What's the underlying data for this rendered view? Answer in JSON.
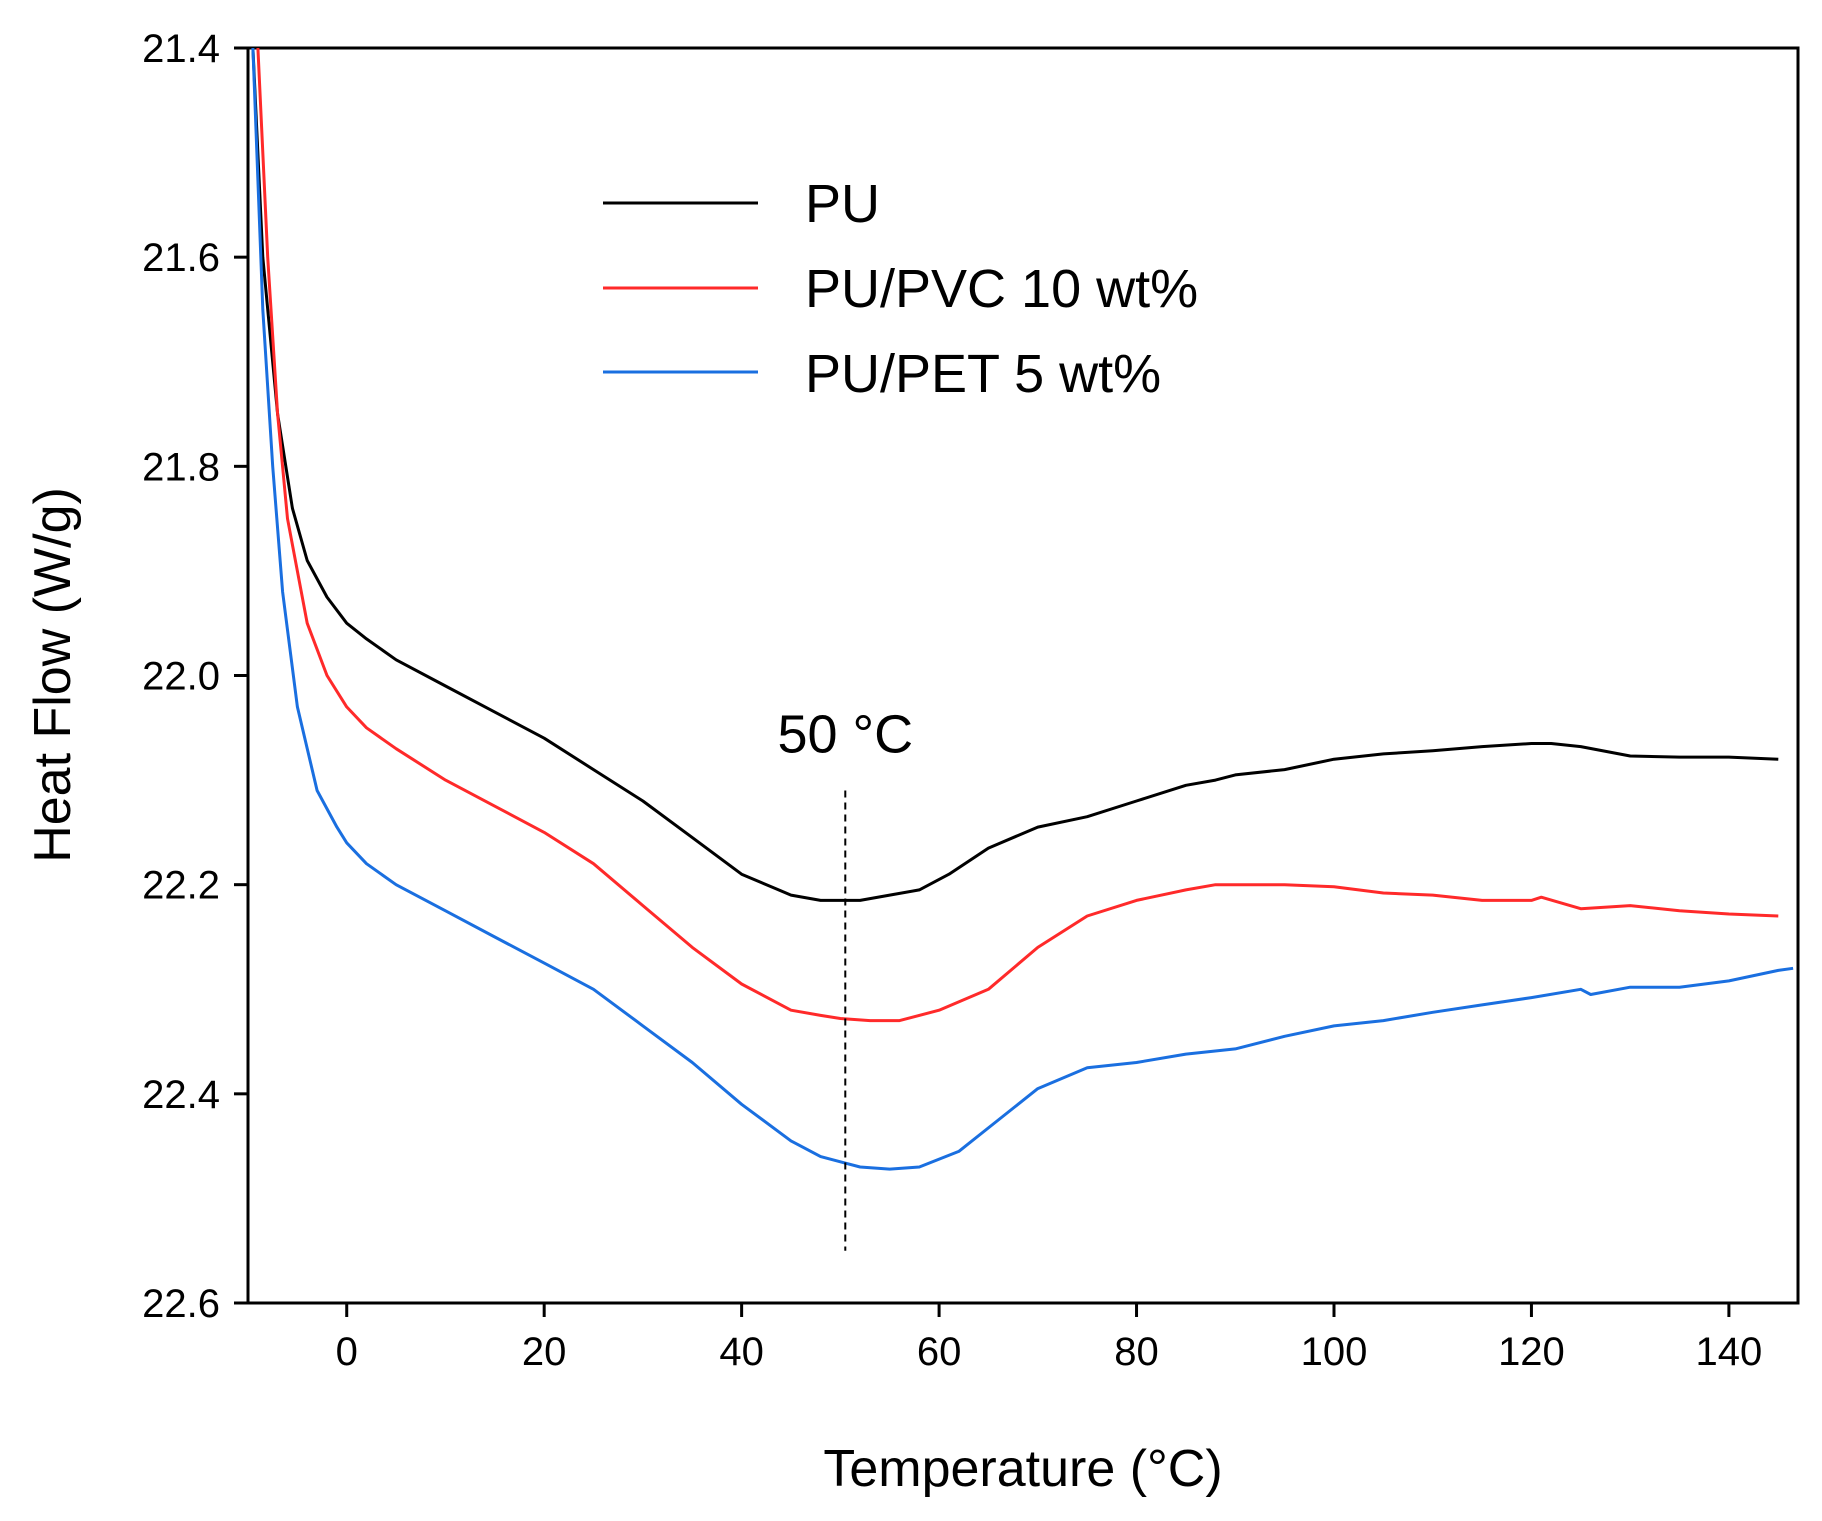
{
  "chart_data": {
    "type": "line",
    "title": "",
    "xlabel": "Temperature (°C)",
    "ylabel": "Heat Flow (W/g)",
    "xlim": [
      -10,
      147
    ],
    "ylim": [
      21.4,
      22.6
    ],
    "y_inverted": true,
    "x_ticks": [
      0,
      20,
      40,
      60,
      80,
      100,
      120,
      140
    ],
    "x_tick_labels": [
      "0",
      "20",
      "40",
      "60",
      "80",
      "100",
      "120",
      "140"
    ],
    "y_ticks": [
      21.4,
      21.6,
      21.8,
      22.0,
      22.2,
      22.4,
      22.6
    ],
    "y_tick_labels": [
      "21.4",
      "21.6",
      "21.8",
      "22.0",
      "22.2",
      "22.4",
      "22.6"
    ],
    "grid": false,
    "legend_position": "top-center",
    "series": [
      {
        "name": "PU",
        "color": "#000000",
        "x": [
          -9.5,
          -8.5,
          -7,
          -5.5,
          -4,
          -2,
          0,
          2,
          5,
          10,
          15,
          20,
          25,
          30,
          35,
          40,
          45,
          48,
          50,
          52,
          55,
          58,
          61,
          65,
          70,
          75,
          80,
          85,
          88,
          90,
          95,
          100,
          105,
          110,
          115,
          120,
          122,
          125,
          130,
          135,
          140,
          145
        ],
        "y": [
          21.4,
          21.6,
          21.75,
          21.84,
          21.89,
          21.925,
          21.95,
          21.965,
          21.985,
          22.01,
          22.035,
          22.06,
          22.09,
          22.12,
          22.155,
          22.19,
          22.21,
          22.215,
          22.215,
          22.215,
          22.21,
          22.205,
          22.19,
          22.165,
          22.145,
          22.135,
          22.12,
          22.105,
          22.1,
          22.095,
          22.09,
          22.08,
          22.075,
          22.072,
          22.068,
          22.065,
          22.065,
          22.068,
          22.077,
          22.078,
          22.078,
          22.08
        ]
      },
      {
        "name": "PU/PVC 10 wt%",
        "color": "#ff2a2a",
        "x": [
          -9,
          -8,
          -7,
          -6,
          -4,
          -2,
          0,
          2,
          5,
          10,
          15,
          20,
          25,
          30,
          35,
          40,
          45,
          48,
          50,
          53,
          56,
          60,
          65,
          70,
          75,
          80,
          85,
          88,
          90,
          95,
          100,
          105,
          110,
          115,
          120,
          121,
          125,
          130,
          135,
          140,
          145
        ],
        "y": [
          21.4,
          21.6,
          21.75,
          21.85,
          21.95,
          22.0,
          22.03,
          22.05,
          22.07,
          22.1,
          22.125,
          22.15,
          22.18,
          22.22,
          22.26,
          22.295,
          22.32,
          22.325,
          22.328,
          22.33,
          22.33,
          22.32,
          22.3,
          22.26,
          22.23,
          22.215,
          22.205,
          22.2,
          22.2,
          22.2,
          22.202,
          22.208,
          22.21,
          22.215,
          22.215,
          22.212,
          22.223,
          22.22,
          22.225,
          22.228,
          22.23
        ]
      },
      {
        "name": "PU/PET 5 wt%",
        "color": "#1a6fe0",
        "x": [
          -9.5,
          -8.5,
          -7.5,
          -6.5,
          -5,
          -3,
          -1,
          0,
          2,
          5,
          10,
          15,
          20,
          25,
          30,
          35,
          40,
          45,
          48,
          50,
          52,
          55,
          58,
          62,
          66,
          70,
          75,
          80,
          85,
          90,
          95,
          100,
          105,
          110,
          115,
          120,
          125,
          126,
          130,
          135,
          140,
          145,
          146.5
        ],
        "y": [
          21.4,
          21.65,
          21.8,
          21.92,
          22.03,
          22.11,
          22.145,
          22.16,
          22.18,
          22.2,
          22.225,
          22.25,
          22.275,
          22.3,
          22.335,
          22.37,
          22.41,
          22.445,
          22.46,
          22.465,
          22.47,
          22.472,
          22.47,
          22.455,
          22.425,
          22.395,
          22.375,
          22.37,
          22.362,
          22.357,
          22.345,
          22.335,
          22.33,
          22.322,
          22.315,
          22.308,
          22.3,
          22.305,
          22.298,
          22.298,
          22.292,
          22.282,
          22.28
        ]
      }
    ],
    "annotations": [
      {
        "text": "50 °C",
        "x": 50.5,
        "type": "vertical-dashed-line",
        "y_from": 22.11,
        "y_to": 22.55
      }
    ]
  }
}
